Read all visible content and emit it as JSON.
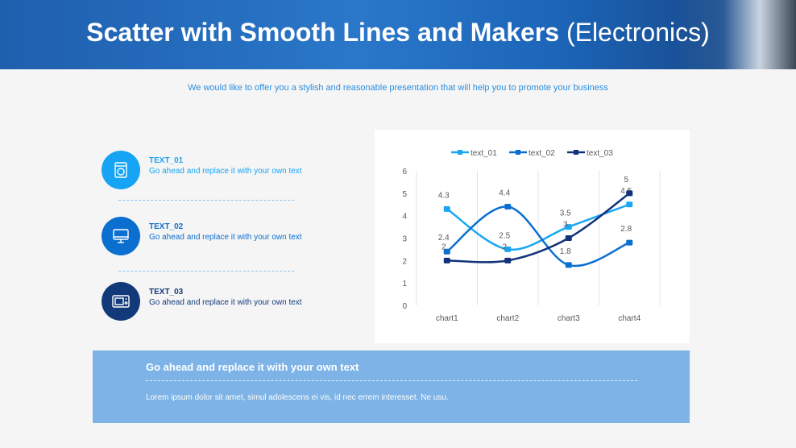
{
  "header": {
    "title": "Scatter with Smooth Lines and Makers",
    "title_suffix": "(Electronics)"
  },
  "subtitle": "We would like to offer you a stylish and reasonable presentation that will help you to promote your business",
  "items": [
    {
      "title": "TEXT_01",
      "text": "Go ahead and replace it with your own text",
      "icon": "washing-machine-icon",
      "color": "#17a4f5"
    },
    {
      "title": "TEXT_02",
      "text": "Go ahead and replace it with your own text",
      "icon": "monitor-icon",
      "color": "#0b6fd0"
    },
    {
      "title": "TEXT_03",
      "text": "Go ahead and replace it with your own text",
      "icon": "microwave-icon",
      "color": "#12397a"
    }
  ],
  "banner": {
    "title": "Go ahead and replace it with your own text",
    "text": "Lorem ipsum dolor sit amet, simul adolescens ei vis, id nec errem interesset. Ne usu."
  },
  "chart_data": {
    "type": "line",
    "smooth": true,
    "markers": true,
    "categories": [
      "chart1",
      "chart2",
      "chart3",
      "chart4"
    ],
    "ylim": [
      0,
      6
    ],
    "yticks": [
      0,
      1,
      2,
      3,
      4,
      5,
      6
    ],
    "legend": "top",
    "grid": "vertical",
    "series": [
      {
        "name": "text_01",
        "values": [
          4.3,
          2.5,
          3.5,
          4.5
        ],
        "color": "#1aa7f2"
      },
      {
        "name": "text_02",
        "values": [
          2.4,
          4.4,
          1.8,
          2.8
        ],
        "color": "#0b6fd0"
      },
      {
        "name": "text_03",
        "values": [
          2,
          2,
          3,
          5
        ],
        "color": "#12337a"
      }
    ]
  }
}
